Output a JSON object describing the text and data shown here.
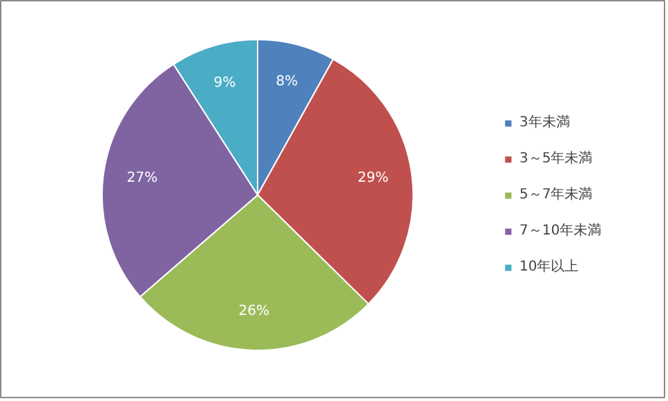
{
  "chart_data": {
    "type": "pie",
    "categories": [
      "3年未満",
      "3～5年未満",
      "5～7年未満",
      "7～10年未満",
      "10年以上"
    ],
    "values": [
      8,
      29,
      26,
      27,
      9
    ],
    "colors": [
      "#4f81bd",
      "#c0504d",
      "#9bbb59",
      "#8064a2",
      "#4bacc6"
    ],
    "value_labels": [
      "8%",
      "29%",
      "26%",
      "27%",
      "9%"
    ],
    "legend": "right"
  }
}
